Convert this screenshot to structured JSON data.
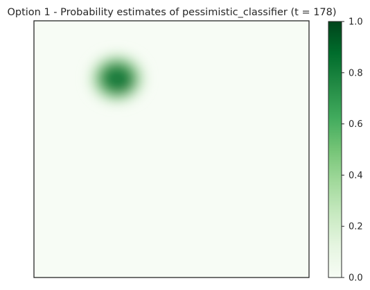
{
  "chart_data": {
    "type": "heatmap",
    "title": "Option 1 - Probability estimates of pessimistic_classifier (t = 178)",
    "colormap": "Greens",
    "colormap_low": "#f7fcf5",
    "colormap_high": "#00441b",
    "value_range": [
      0,
      1
    ],
    "hotspot": {
      "center_x": 0.31,
      "center_y": 0.8,
      "spread_x": 0.058,
      "spread_y": 0.052,
      "peak_value": 0.93
    },
    "axes_ticks_visible": false,
    "grid": false,
    "colorbar": {
      "ticks": [
        0.0,
        0.2,
        0.4,
        0.6,
        0.8,
        1.0
      ],
      "tick_labels": [
        "0.0",
        "0.2",
        "0.4",
        "0.6",
        "0.8",
        "1.0"
      ]
    }
  }
}
